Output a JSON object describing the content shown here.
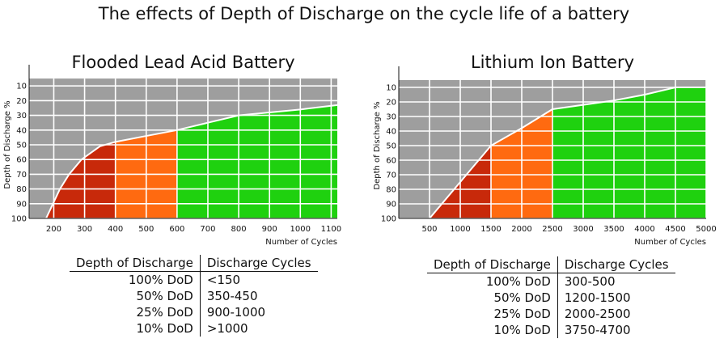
{
  "title": "The effects of Depth of Discharge on the cycle life of a battery",
  "colors": {
    "background_region": "#9e9e9e",
    "grid": "#ffffff",
    "dod_100": "#c8290a",
    "dod_50": "#ff6a10",
    "dod_25": "#1fd10f",
    "dod_10": "#1fd10f"
  },
  "chart_data": [
    {
      "type": "area",
      "title": "Flooded Lead Acid Battery",
      "xlabel": "Number of Cycles",
      "ylabel": "Depth of Discharge %",
      "x_ticks": [
        200,
        300,
        400,
        500,
        600,
        700,
        800,
        900,
        1000,
        1100
      ],
      "y_ticks": [
        10,
        20,
        30,
        40,
        50,
        60,
        70,
        80,
        90,
        100
      ],
      "xlim": [
        120,
        1120
      ],
      "ylim": [
        100,
        0
      ],
      "y_inverted": true,
      "grid": true,
      "curve": [
        {
          "x": 175,
          "y": 100
        },
        {
          "x": 220,
          "y": 80
        },
        {
          "x": 250,
          "y": 70
        },
        {
          "x": 290,
          "y": 60
        },
        {
          "x": 350,
          "y": 51
        },
        {
          "x": 400,
          "y": 48
        },
        {
          "x": 500,
          "y": 44
        },
        {
          "x": 600,
          "y": 40
        },
        {
          "x": 700,
          "y": 35
        },
        {
          "x": 800,
          "y": 30
        },
        {
          "x": 900,
          "y": 28
        },
        {
          "x": 1000,
          "y": 26
        },
        {
          "x": 1120,
          "y": 23
        }
      ],
      "bands": [
        {
          "from": 120,
          "to": 400,
          "color_key": "dod_100"
        },
        {
          "from": 400,
          "to": 600,
          "color_key": "dod_50"
        },
        {
          "from": 600,
          "to": 1120,
          "color_key": "dod_25"
        }
      ]
    },
    {
      "type": "area",
      "title": "Lithium Ion Battery",
      "xlabel": "Number of Cycles",
      "ylabel": "Depth of Discharge %",
      "x_ticks": [
        500,
        1000,
        1500,
        2000,
        2500,
        3000,
        3500,
        4000,
        4500,
        5000
      ],
      "y_ticks": [
        10,
        20,
        30,
        40,
        50,
        60,
        70,
        80,
        90,
        100
      ],
      "xlim": [
        0,
        5000
      ],
      "ylim": [
        100,
        0
      ],
      "y_inverted": true,
      "grid": true,
      "curve": [
        {
          "x": 500,
          "y": 100
        },
        {
          "x": 1000,
          "y": 75
        },
        {
          "x": 1500,
          "y": 50
        },
        {
          "x": 2000,
          "y": 38
        },
        {
          "x": 2500,
          "y": 25
        },
        {
          "x": 3000,
          "y": 22
        },
        {
          "x": 3500,
          "y": 19
        },
        {
          "x": 4000,
          "y": 15
        },
        {
          "x": 4500,
          "y": 10
        },
        {
          "x": 5000,
          "y": 10
        }
      ],
      "bands": [
        {
          "from": 0,
          "to": 1500,
          "color_key": "dod_100"
        },
        {
          "from": 1500,
          "to": 2500,
          "color_key": "dod_50"
        },
        {
          "from": 2500,
          "to": 4500,
          "color_key": "dod_25"
        },
        {
          "from": 4500,
          "to": 5000,
          "color_key": "dod_10"
        }
      ]
    }
  ],
  "tables": {
    "lead": {
      "headers": [
        "Depth of Discharge",
        "Discharge Cycles"
      ],
      "rows": [
        [
          "100% DoD",
          "<150"
        ],
        [
          "50% DoD",
          "350-450"
        ],
        [
          "25% DoD",
          "900-1000"
        ],
        [
          "10% DoD",
          ">1000"
        ]
      ]
    },
    "li": {
      "headers": [
        "Depth of Discharge",
        "Discharge Cycles"
      ],
      "rows": [
        [
          "100% DoD",
          "300-500"
        ],
        [
          "50% DoD",
          "1200-1500"
        ],
        [
          "25% DoD",
          "2000-2500"
        ],
        [
          "10% DoD",
          "3750-4700"
        ]
      ]
    }
  }
}
